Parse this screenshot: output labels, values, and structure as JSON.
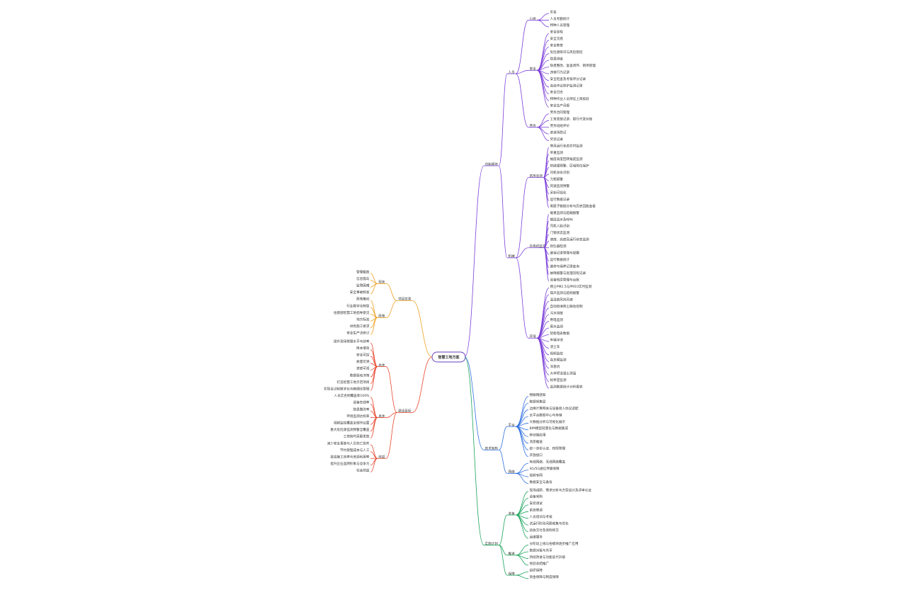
{
  "center": "智慧工地方案",
  "branches": [
    {
      "label": "功能模块",
      "color": "#7b3fd9",
      "side": "right",
      "children": [
        {
          "label": "人员",
          "children": [
            {
              "label": "小组",
              "children": [
                "实名",
                "人员考勤统计",
                "特种人员管理"
              ]
            },
            {
              "label": "安全",
              "children": [
                "安全巡检",
                "安全交底",
                "安全教育",
                "危险源辨识与风险管控",
                "隐患排查",
                "隐患整改、复查闭环、销项管理",
                "违章行为记录",
                "安全检查及考核评分记录",
                "高处作业防护监测记录",
                "安全日志",
                "特种作业人员持证上岗核验",
                "安全生产月报"
              ]
            },
            {
              "label": "劳务",
              "children": [
                "劳务合同管理",
                "工资发放记录、银行代发对账",
                "劳务班组评价",
                "进退场登记",
                "奖惩记录"
              ]
            }
          ]
        },
        {
          "label": "机械",
          "children": [
            {
              "label": "塔吊监测",
              "children": [
                "塔吊运行状态实时监测",
                "吊重监测",
                "幅度高度回转角度监测",
                "防碰撞预警、区域限位保护",
                "司机身份识别",
                "力矩报警",
                "风速监测预警",
                "吊钩可视化",
                "运行数据记录",
                "黑匣子数据分析与历史回放查看"
              ]
            },
            {
              "label": "升降机监测",
              "children": [
                "载重监测与超载报警",
                "楼层显示及呼叫",
                "司机人脸识别",
                "门锁状态监测",
                "速度、高度及运行状态监测",
                "防坠器检测",
                "维保记录管理与提醒",
                "运行数据统计",
                "维修与保养记录查询",
                "故障报警与处理流程记录",
                "设备档案管理与台账"
              ]
            },
            {
              "label": "环境",
              "children": [
                "扬尘PM2.5与PM10实时监测",
                "噪声监测与超标报警",
                "温湿度风向风速",
                "自动喷淋降尘联动控制",
                "污水排放",
                "用电监测",
                "用水监测",
                "智能电表数据",
                "车辆冲洗",
                "渣土车",
                "视频监控",
                "高支模监测",
                "深基坑",
                "大体积混凝土测温",
                "标养室监测",
                "监测数据统计分析报表"
              ]
            }
          ]
        }
      ]
    },
    {
      "label": "技术架构",
      "color": "#2f6fe0",
      "side": "right",
      "children": [
        {
          "label": "平台",
          "children": [
            "物联网感知",
            "数据采集层",
            "边缘计算网关与设备接入协议适配",
            "云平台数据中心与存储",
            "大数据分析与可视化展示",
            "BIM模型轻量化与数据集成",
            "移动端应用",
            "消息推送",
            "统一身份认证、权限管理",
            "开放接口"
          ]
        },
        {
          "label": "网络",
          "children": [
            "有线网络、无线网络覆盖",
            "4G/5G通信传输保障",
            "视频专网",
            "数据安全与备份"
          ]
        }
      ]
    },
    {
      "label": "实施计划",
      "color": "#19a35a",
      "side": "right",
      "children": [
        {
          "label": "准备",
          "children": [
            "现场调研、需求分析与方案设计及评审论证",
            "设备采购",
            "安装调试",
            "系统联调",
            "人员培训与考核",
            "试运行阶段问题收集与优化",
            "验收交付及资料移交",
            "运维服务"
          ]
        },
        {
          "label": "推进",
          "children": [
            "分阶段上线与各模块逐步推广应用",
            "数据对接与共享",
            "持续改进与功能迭代升级",
            "经验总结推广"
          ]
        },
        {
          "label": "保障",
          "children": [
            "组织保障",
            "资金保障与制度保障"
          ]
        }
      ]
    },
    {
      "label": "项目背景",
      "color": "#f0a020",
      "side": "left",
      "children": [
        {
          "label": "现状",
          "children": [
            "管理粗放",
            "信息孤岛",
            "监管困难",
            "安全事故频发"
          ]
        },
        {
          "label": "政策",
          "children": [
            "政策推动",
            "行业数字化转型",
            "住建部智慧工地指导意见",
            "地方标准",
            "绿色施工要求",
            "安全生产法修订"
          ]
        }
      ]
    },
    {
      "label": "建设目标",
      "color": "#e8452c",
      "side": "left",
      "children": [
        {
          "label": "总体",
          "children": [
            "提升现场管理水平与效率",
            "降本增效",
            "安全可控",
            "质量可溯",
            "进度可视",
            "数据驱动决策",
            "打造智慧工地示范项目",
            "实现全过程数字化与精细化管理"
          ]
        },
        {
          "label": "具体",
          "children": [
            "人员实名制覆盖率100%",
            "设备在线率",
            "隐患整改率",
            "环境监测达标率",
            "视频监控覆盖全部作业面",
            "重大危险源监测预警全覆盖",
            "工资按时足额发放"
          ]
        },
        {
          "label": "效益",
          "children": [
            "减少安全事故与人员伤亡损失",
            "节约管理成本与人工",
            "提高施工效率与资源利用率",
            "提升企业品牌形象与竞争力",
            "社会效益"
          ]
        }
      ]
    }
  ]
}
